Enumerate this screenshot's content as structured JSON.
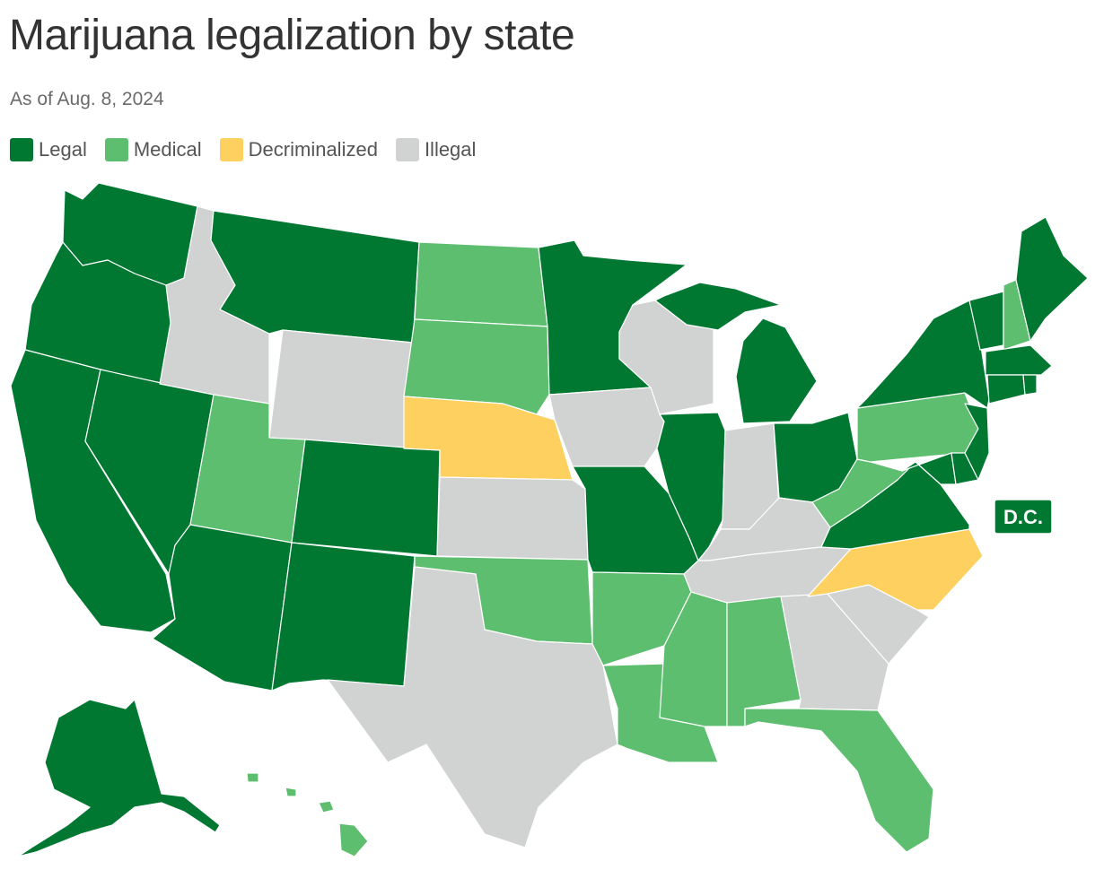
{
  "title": "Marijuana legalization by state",
  "subtitle": "As of Aug. 8, 2024",
  "colors": {
    "legal": "#007832",
    "medical": "#5ebe6f",
    "decriminalized": "#fdd05f",
    "illegal": "#d1d2d2"
  },
  "legend": [
    {
      "key": "legal",
      "label": "Legal"
    },
    {
      "key": "medical",
      "label": "Medical"
    },
    {
      "key": "decriminalized",
      "label": "Decriminalized"
    },
    {
      "key": "illegal",
      "label": "Illegal"
    }
  ],
  "dc": {
    "label": "D.C.",
    "status": "legal"
  },
  "states": {
    "WA": "legal",
    "OR": "legal",
    "CA": "legal",
    "NV": "legal",
    "ID": "illegal",
    "MT": "legal",
    "WY": "illegal",
    "UT": "medical",
    "AZ": "legal",
    "CO": "legal",
    "NM": "legal",
    "ND": "medical",
    "SD": "medical",
    "NE": "decriminalized",
    "KS": "illegal",
    "OK": "medical",
    "TX": "illegal",
    "MN": "legal",
    "IA": "illegal",
    "MO": "legal",
    "AR": "medical",
    "LA": "medical",
    "WI": "illegal",
    "IL": "legal",
    "MI": "legal",
    "IN": "illegal",
    "OH": "legal",
    "KY": "illegal",
    "TN": "illegal",
    "MS": "medical",
    "AL": "medical",
    "GA": "illegal",
    "FL": "medical",
    "SC": "illegal",
    "NC": "decriminalized",
    "VA": "legal",
    "WV": "medical",
    "PA": "medical",
    "NY": "legal",
    "VT": "legal",
    "NH": "medical",
    "ME": "legal",
    "MA": "legal",
    "CT": "legal",
    "RI": "legal",
    "NJ": "legal",
    "DE": "legal",
    "MD": "legal",
    "AK": "legal",
    "HI": "medical"
  }
}
